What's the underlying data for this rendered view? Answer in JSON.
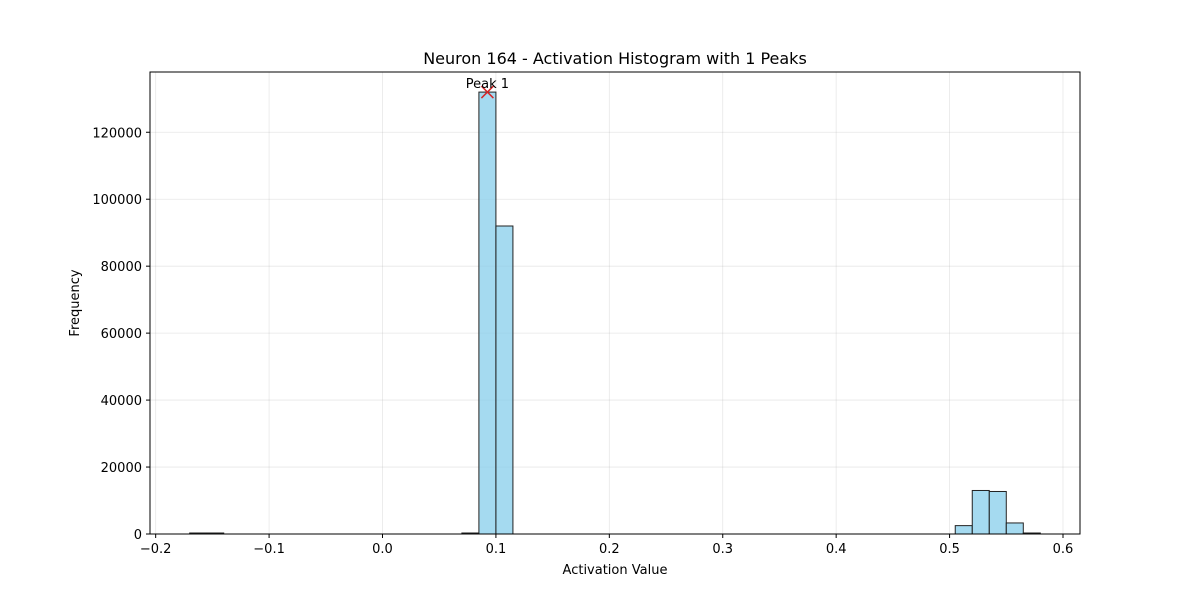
{
  "chart_data": {
    "type": "bar",
    "title": "Neuron 164 - Activation Histogram with 1 Peaks",
    "xlabel": "Activation Value",
    "ylabel": "Frequency",
    "xlim": [
      -0.205,
      0.615
    ],
    "ylim": [
      0,
      138000
    ],
    "xticks": [
      -0.2,
      -0.1,
      0.0,
      0.1,
      0.2,
      0.3,
      0.4,
      0.5,
      0.6
    ],
    "xtick_labels": [
      "−0.2",
      "−0.1",
      "0.0",
      "0.1",
      "0.2",
      "0.3",
      "0.4",
      "0.5",
      "0.6"
    ],
    "yticks": [
      0,
      20000,
      40000,
      60000,
      80000,
      100000,
      120000
    ],
    "ytick_labels": [
      "0",
      "20000",
      "40000",
      "60000",
      "80000",
      "100000",
      "120000"
    ],
    "grid": true,
    "bar_color": "#87ceeb",
    "edge_color": "#222222",
    "bins": [
      {
        "x0": -0.17,
        "x1": -0.155,
        "value": 300
      },
      {
        "x0": -0.155,
        "x1": -0.14,
        "value": 300
      },
      {
        "x0": 0.07,
        "x1": 0.085,
        "value": 300
      },
      {
        "x0": 0.085,
        "x1": 0.1,
        "value": 132000
      },
      {
        "x0": 0.1,
        "x1": 0.115,
        "value": 92000
      },
      {
        "x0": 0.505,
        "x1": 0.52,
        "value": 2500
      },
      {
        "x0": 0.52,
        "x1": 0.535,
        "value": 13000
      },
      {
        "x0": 0.535,
        "x1": 0.55,
        "value": 12700
      },
      {
        "x0": 0.55,
        "x1": 0.565,
        "value": 3300
      },
      {
        "x0": 0.565,
        "x1": 0.58,
        "value": 300
      }
    ],
    "peaks": [
      {
        "label": "Peak 1",
        "x": 0.0925,
        "y": 132000,
        "marker_color": "#d62728"
      }
    ]
  }
}
